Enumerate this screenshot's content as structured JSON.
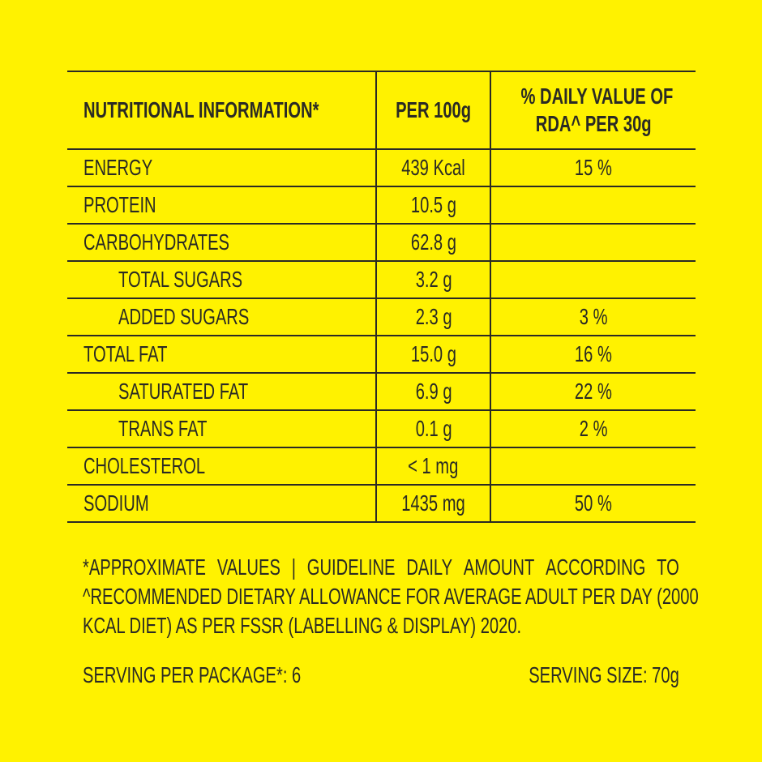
{
  "table": {
    "headers": {
      "nutrient": "NUTRITIONAL INFORMATION*",
      "per100": "PER 100g",
      "dv_line1": "% DAILY VALUE OF",
      "dv_line2": "RDA^ PER 30g"
    },
    "rows": [
      {
        "name": "ENERGY",
        "per100": "439 Kcal",
        "dv": "15 %",
        "indent": false
      },
      {
        "name": "PROTEIN",
        "per100": "10.5 g",
        "dv": "",
        "indent": false
      },
      {
        "name": "CARBOHYDRATES",
        "per100": "62.8 g",
        "dv": "",
        "indent": false
      },
      {
        "name": "TOTAL SUGARS",
        "per100": "3.2 g",
        "dv": "",
        "indent": true
      },
      {
        "name": "ADDED SUGARS",
        "per100": "2.3 g",
        "dv": "3 %",
        "indent": true
      },
      {
        "name": "TOTAL FAT",
        "per100": "15.0 g",
        "dv": "16 %",
        "indent": false
      },
      {
        "name": "SATURATED FAT",
        "per100": "6.9 g",
        "dv": "22 %",
        "indent": true
      },
      {
        "name": "TRANS FAT",
        "per100": "0.1 g",
        "dv": "2 %",
        "indent": true
      },
      {
        "name": "CHOLESTEROL",
        "per100": "< 1 mg",
        "dv": "",
        "indent": false
      },
      {
        "name": "SODIUM",
        "per100": "1435 mg",
        "dv": "50 %",
        "indent": false
      }
    ]
  },
  "footnote": {
    "line1_words": [
      "*APPROXIMATE",
      "VALUES",
      "|",
      "GUIDELINE",
      "DAILY",
      "AMOUNT",
      "ACCORDING",
      "TO"
    ],
    "line2": "^RECOMMENDED DIETARY ALLOWANCE FOR AVERAGE ADULT PER DAY (2000",
    "line3": "KCAL DIET) AS PER FSSR (LABELLING & DISPLAY) 2020."
  },
  "serving": {
    "per_package": "SERVING PER PACKAGE*: 6",
    "size": "SERVING SIZE: 70g"
  },
  "colors": {
    "background": "#FFF200",
    "text": "#2a2a24"
  }
}
